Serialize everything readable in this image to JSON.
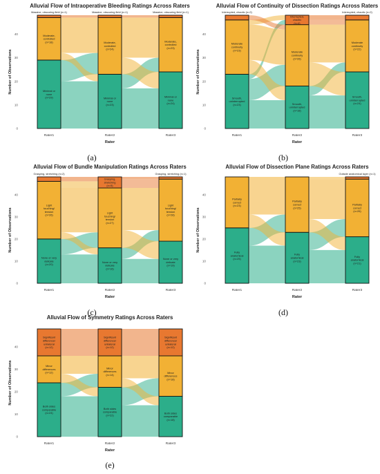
{
  "colors": {
    "category1": "#2cae8a",
    "category2": "#f2b134",
    "category3": "#e87830"
  },
  "chart_data": [
    {
      "type": "alluvial",
      "caption": "(a)",
      "title": "Alluvial Flow of Intraoperative Bleeding Ratings Across Raters",
      "xlabel": "Rater",
      "ylabel": "Number of Observations",
      "axes": [
        "Rater1",
        "Rater2",
        "Rater3"
      ],
      "ylim": [
        0,
        48
      ],
      "yticks": [
        0,
        10,
        20,
        30,
        40
      ],
      "categories": [
        "Minimal or none",
        "Moderate, controlled",
        "Massive, obscuring field"
      ],
      "nodes": [
        [
          {
            "label": "Minimal or none",
            "count": 29,
            "note": "(n=29)"
          },
          {
            "label": "Moderate, controlled",
            "count": 18,
            "note": "(n=18)"
          },
          {
            "label": "Massive, obscuring field",
            "count": 1,
            "note": "(n=1)"
          }
        ],
        [
          {
            "label": "Minimal or none",
            "count": 23,
            "note": "(n=23)"
          },
          {
            "label": "Moderate, controlled",
            "count": 24,
            "note": "(n=24)"
          },
          {
            "label": "Massive, obscuring field",
            "count": 1,
            "note": "(n=1)"
          }
        ],
        [
          {
            "label": "Minimal or none",
            "count": 24,
            "note": "(n=24)"
          },
          {
            "label": "Moderate, controlled",
            "count": 23,
            "note": "(n=23)"
          },
          {
            "label": "Massive, obscuring field",
            "count": 1,
            "note": "(n=1)"
          }
        ]
      ],
      "flows": [
        [
          [
            20,
            9,
            0
          ],
          [
            3,
            15,
            0
          ],
          [
            0,
            0,
            1
          ]
        ],
        [
          [
            17,
            6,
            0
          ],
          [
            7,
            17,
            0
          ],
          [
            0,
            0,
            1
          ]
        ]
      ]
    },
    {
      "type": "alluvial",
      "caption": "(b)",
      "title": "Alluvial Flow of Continuity of Dissection Ratings Across Raters",
      "xlabel": "Rater",
      "ylabel": "Number of Observations",
      "axes": [
        "Rater1",
        "Rater2",
        "Rater3"
      ],
      "ylim": [
        0,
        48
      ],
      "yticks": [
        0,
        10,
        20,
        30,
        40
      ],
      "categories": [
        "Smooth, uninterrupted",
        "Moderate continuity",
        "Interrupted, chaotic"
      ],
      "nodes": [
        [
          {
            "label": "Smooth, uninterrupted",
            "count": 23,
            "note": "(n=23)"
          },
          {
            "label": "Moderate continuity",
            "count": 23,
            "note": "(n=23)"
          },
          {
            "label": "Interrupted, chaotic",
            "count": 2,
            "note": "(n=2)"
          }
        ],
        [
          {
            "label": "Smooth, uninterrupted",
            "count": 18,
            "note": "(n=18)"
          },
          {
            "label": "Moderate continuity",
            "count": 26,
            "note": "(n=26)"
          },
          {
            "label": "Interrupted, chaotic",
            "count": 4,
            "note": "(n=4)"
          }
        ],
        [
          {
            "label": "Smooth, uninterrupted",
            "count": 24,
            "note": "(n=24)"
          },
          {
            "label": "Moderate continuity",
            "count": 22,
            "note": "(n=22)"
          },
          {
            "label": "Interrupted, chaotic",
            "count": 2,
            "note": "(n=2)"
          }
        ]
      ],
      "flows": [
        [
          [
            12,
            9,
            2
          ],
          [
            6,
            15,
            2
          ],
          [
            0,
            2,
            0
          ]
        ],
        [
          [
            14,
            4,
            0
          ],
          [
            10,
            16,
            0
          ],
          [
            0,
            2,
            2
          ]
        ]
      ]
    },
    {
      "type": "alluvial",
      "caption": "(c)",
      "title": "Alluvial Flow of Bundle Manipulation Ratings Across Raters",
      "xlabel": "Rater",
      "ylabel": "Number of Observations",
      "axes": [
        "Rater1",
        "Rater2",
        "Rater3"
      ],
      "ylim": [
        0,
        48
      ],
      "yticks": [
        0,
        10,
        20,
        30,
        40
      ],
      "categories": [
        "None or very delicate",
        "Light touching/tension",
        "Grasping, stretching"
      ],
      "nodes": [
        [
          {
            "label": "None or very delicate",
            "count": 20,
            "note": "(n=20)"
          },
          {
            "label": "Light touching/ tension",
            "count": 26,
            "note": "(n=26)"
          },
          {
            "label": "Grasping, stretching",
            "count": 2,
            "note": "(n=2)"
          }
        ],
        [
          {
            "label": "None or very delicate",
            "count": 16,
            "note": "(n=16)"
          },
          {
            "label": "Light touching/ tension",
            "count": 27,
            "note": "(n=27)"
          },
          {
            "label": "Grasping, stretching",
            "count": 5,
            "note": "(n=5)"
          }
        ],
        [
          {
            "label": "None or very delicate",
            "count": 19,
            "note": "(n=19)"
          },
          {
            "label": "Light touching/ tension",
            "count": 28,
            "note": "(n=28)"
          },
          {
            "label": "Grasping, stretching",
            "count": 1,
            "note": "(n=1)"
          }
        ]
      ],
      "flows": [
        [
          [
            13,
            7,
            0
          ],
          [
            3,
            20,
            3
          ],
          [
            0,
            0,
            2
          ]
        ],
        [
          [
            11,
            5,
            0
          ],
          [
            8,
            19,
            0
          ],
          [
            0,
            4,
            1
          ]
        ]
      ]
    },
    {
      "type": "alluvial",
      "caption": "(d)",
      "title": "Alluvial Flow of Dissection Plane Ratings Across Raters",
      "xlabel": "Rater",
      "ylabel": "Number of Observations",
      "axes": [
        "Rater1",
        "Rater2",
        "Rater3"
      ],
      "ylim": [
        0,
        48
      ],
      "yticks": [
        0,
        10,
        20,
        30,
        40
      ],
      "categories": [
        "Fully anatomical",
        "Partially correct",
        "Outside anatomical layer"
      ],
      "nodes": [
        [
          {
            "label": "Fully anatomical",
            "count": 25,
            "note": "(n=25)"
          },
          {
            "label": "Partially correct",
            "count": 23,
            "note": "(n=23)"
          },
          {
            "label": "Outside anatomical layer",
            "count": 0,
            "note": ""
          }
        ],
        [
          {
            "label": "Fully anatomical",
            "count": 23,
            "note": "(n=23)"
          },
          {
            "label": "Partially correct",
            "count": 25,
            "note": "(n=25)"
          },
          {
            "label": "Outside anatomical layer",
            "count": 0,
            "note": ""
          }
        ],
        [
          {
            "label": "Fully anatomical",
            "count": 21,
            "note": "(n=21)"
          },
          {
            "label": "Partially correct",
            "count": 26,
            "note": "(n=26)"
          },
          {
            "label": "Outside anatomical layer",
            "count": 1,
            "note": "(n=1)"
          }
        ]
      ],
      "flows": [
        [
          [
            17,
            8,
            0
          ],
          [
            6,
            17,
            0
          ],
          [
            0,
            0,
            0
          ]
        ],
        [
          [
            15,
            8,
            0
          ],
          [
            6,
            18,
            1
          ],
          [
            0,
            0,
            0
          ]
        ]
      ]
    },
    {
      "type": "alluvial",
      "caption": "(e)",
      "title": "Alluvial Flow of Symmetry Ratings Across Raters",
      "xlabel": "Rater",
      "ylabel": "Number of Observations",
      "axes": [
        "Rater1",
        "Rater2",
        "Rater3"
      ],
      "ylim": [
        0,
        48
      ],
      "yticks": [
        0,
        10,
        20,
        30,
        40
      ],
      "categories": [
        "Both sides comparable",
        "Minor differences",
        "Significant difference/ unilateral"
      ],
      "nodes": [
        [
          {
            "label": "Both sides comparable",
            "count": 24,
            "note": "(n=24)"
          },
          {
            "label": "Minor differences",
            "count": 12,
            "note": "(n=12)"
          },
          {
            "label": "Significant difference/ unilateral",
            "count": 12,
            "note": "(n=12)"
          }
        ],
        [
          {
            "label": "Both sides comparable",
            "count": 22,
            "note": "(n=22)"
          },
          {
            "label": "Minor differences",
            "count": 14,
            "note": "(n=14)"
          },
          {
            "label": "Significant difference/ unilateral",
            "count": 12,
            "note": "(n=12)"
          }
        ],
        [
          {
            "label": "Both sides comparable",
            "count": 18,
            "note": "(n=18)"
          },
          {
            "label": "Minor differences",
            "count": 18,
            "note": "(n=18)"
          },
          {
            "label": "Significant difference/ unilateral",
            "count": 12,
            "note": "(n=12)"
          }
        ]
      ],
      "flows": [
        [
          [
            18,
            6,
            0
          ],
          [
            4,
            8,
            0
          ],
          [
            0,
            0,
            12
          ]
        ],
        [
          [
            14,
            8,
            0
          ],
          [
            4,
            10,
            0
          ],
          [
            0,
            0,
            12
          ]
        ]
      ]
    }
  ]
}
